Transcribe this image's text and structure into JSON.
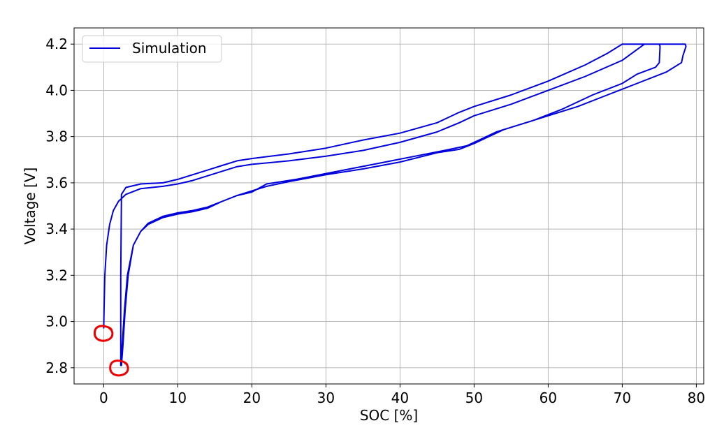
{
  "chart_data": {
    "type": "line",
    "xlabel": "SOC [%]",
    "ylabel": "Voltage [V]",
    "xlim": [
      -4,
      81
    ],
    "ylim": [
      2.73,
      4.27
    ],
    "xticks": [
      0,
      10,
      20,
      30,
      40,
      50,
      60,
      70,
      80
    ],
    "yticks": [
      2.8,
      3.0,
      3.2,
      3.4,
      3.6,
      3.8,
      4.0,
      4.2
    ],
    "grid": true,
    "legend_position": "top-left",
    "series": [
      {
        "name": "Simulation",
        "color": "#0000dd",
        "segments": [
          [
            [
              0,
              2.97
            ],
            [
              0.05,
              3.05
            ],
            [
              0.15,
              3.2
            ],
            [
              0.4,
              3.33
            ],
            [
              0.8,
              3.42
            ],
            [
              1.3,
              3.48
            ],
            [
              2,
              3.52
            ],
            [
              3,
              3.55
            ],
            [
              5,
              3.575
            ],
            [
              8,
              3.585
            ],
            [
              10,
              3.595
            ],
            [
              12,
              3.61
            ],
            [
              14,
              3.63
            ],
            [
              16,
              3.65
            ],
            [
              18,
              3.67
            ],
            [
              20,
              3.68
            ],
            [
              25,
              3.695
            ],
            [
              30,
              3.715
            ],
            [
              35,
              3.74
            ],
            [
              40,
              3.775
            ],
            [
              45,
              3.82
            ],
            [
              48,
              3.86
            ],
            [
              50,
              3.89
            ],
            [
              55,
              3.94
            ],
            [
              60,
              4.0
            ],
            [
              65,
              4.06
            ],
            [
              70,
              4.13
            ],
            [
              73,
              4.2
            ],
            [
              75,
              4.2
            ],
            [
              75.1,
              4.19
            ],
            [
              75,
              4.12
            ],
            [
              74.5,
              4.1
            ],
            [
              72,
              4.07
            ],
            [
              70,
              4.03
            ],
            [
              66,
              3.98
            ],
            [
              62,
              3.92
            ],
            [
              58,
              3.87
            ],
            [
              54,
              3.83
            ],
            [
              52,
              3.8
            ],
            [
              50,
              3.77
            ],
            [
              48,
              3.745
            ],
            [
              45,
              3.73
            ],
            [
              40,
              3.69
            ],
            [
              35,
              3.66
            ],
            [
              30,
              3.635
            ],
            [
              25,
              3.605
            ],
            [
              22,
              3.585
            ],
            [
              20,
              3.565
            ],
            [
              18,
              3.545
            ],
            [
              16,
              3.52
            ],
            [
              14,
              3.49
            ],
            [
              12,
              3.475
            ],
            [
              10,
              3.465
            ],
            [
              8,
              3.45
            ],
            [
              6,
              3.42
            ],
            [
              5,
              3.39
            ],
            [
              4,
              3.33
            ],
            [
              3.3,
              3.2
            ],
            [
              2.9,
              3.05
            ],
            [
              2.6,
              2.9
            ],
            [
              2.4,
              2.81
            ],
            [
              2.3,
              2.81
            ],
            [
              2.3,
              3.2
            ],
            [
              2.4,
              3.55
            ],
            [
              3,
              3.58
            ],
            [
              5,
              3.595
            ],
            [
              8,
              3.6
            ],
            [
              10,
              3.615
            ],
            [
              12,
              3.635
            ],
            [
              14,
              3.655
            ],
            [
              16,
              3.675
            ],
            [
              18,
              3.695
            ],
            [
              20,
              3.705
            ],
            [
              25,
              3.725
            ],
            [
              30,
              3.75
            ],
            [
              35,
              3.785
            ],
            [
              40,
              3.815
            ],
            [
              45,
              3.86
            ],
            [
              48,
              3.905
            ],
            [
              50,
              3.93
            ],
            [
              55,
              3.98
            ],
            [
              60,
              4.04
            ],
            [
              65,
              4.11
            ],
            [
              68,
              4.16
            ],
            [
              70,
              4.2
            ],
            [
              75,
              4.2
            ],
            [
              78.5,
              4.2
            ],
            [
              78.6,
              4.19
            ],
            [
              78.2,
              4.15
            ],
            [
              78,
              4.12
            ],
            [
              76,
              4.08
            ],
            [
              72,
              4.03
            ],
            [
              68,
              3.98
            ],
            [
              64,
              3.93
            ],
            [
              60,
              3.89
            ],
            [
              56,
              3.85
            ],
            [
              53,
              3.82
            ],
            [
              51,
              3.79
            ],
            [
              49,
              3.76
            ],
            [
              46,
              3.74
            ],
            [
              42,
              3.715
            ],
            [
              38,
              3.69
            ],
            [
              34,
              3.665
            ],
            [
              30,
              3.64
            ],
            [
              26,
              3.615
            ],
            [
              22,
              3.595
            ],
            [
              20,
              3.56
            ],
            [
              18,
              3.545
            ],
            [
              16,
              3.52
            ],
            [
              14,
              3.495
            ],
            [
              12,
              3.48
            ],
            [
              10,
              3.47
            ],
            [
              8,
              3.455
            ],
            [
              6,
              3.425
            ],
            [
              5,
              3.39
            ],
            [
              4,
              3.33
            ],
            [
              3.2,
              3.2
            ],
            [
              2.8,
              3.05
            ],
            [
              2.5,
              2.9
            ],
            [
              2.3,
              2.82
            ]
          ]
        ]
      }
    ],
    "annotations": [
      {
        "type": "circle",
        "color": "#ee0000",
        "x": 0,
        "y": 2.95
      },
      {
        "type": "circle",
        "color": "#ee0000",
        "x": 2.1,
        "y": 2.8
      }
    ]
  }
}
